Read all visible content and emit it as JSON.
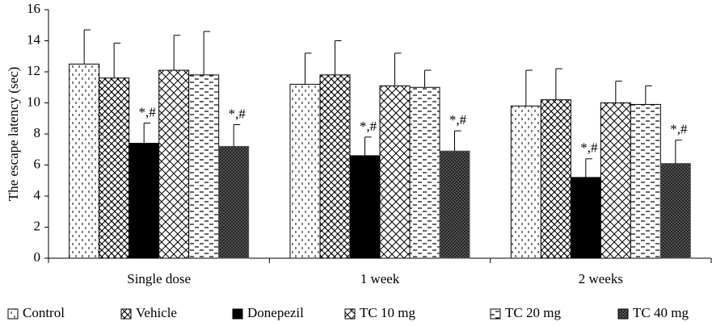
{
  "chart_data": {
    "type": "bar",
    "y_label": "The escape latency (sec)",
    "categories": [
      "Single dose",
      "1 week",
      "2 weeks"
    ],
    "ylim": [
      0,
      16
    ],
    "yticks": [
      0,
      2,
      4,
      6,
      8,
      10,
      12,
      14,
      16
    ],
    "legend": "bottom",
    "series": [
      {
        "name": "Control",
        "color": "#000000",
        "pattern": "vdash",
        "values": [
          12.5,
          11.2,
          9.8
        ],
        "errors": [
          2.2,
          2.0,
          2.3
        ]
      },
      {
        "name": "Vehicle",
        "color": "#000000",
        "pattern": "weave",
        "values": [
          11.6,
          11.8,
          10.2
        ],
        "errors": [
          2.25,
          2.2,
          2.0
        ]
      },
      {
        "name": "Donepezil",
        "color": "#000000",
        "pattern": "solid",
        "values": [
          7.4,
          6.6,
          5.2
        ],
        "errors": [
          1.3,
          1.2,
          1.2
        ],
        "labels": [
          "*,#",
          "*,#",
          "*,#"
        ]
      },
      {
        "name": "TC 10 mg",
        "color": "#000000",
        "pattern": "cross",
        "values": [
          12.1,
          11.1,
          10.0
        ],
        "errors": [
          2.25,
          2.1,
          1.4
        ]
      },
      {
        "name": "TC 20 mg",
        "color": "#000000",
        "pattern": "hdash",
        "values": [
          11.8,
          11.0,
          9.9
        ],
        "errors": [
          2.8,
          1.1,
          1.2
        ]
      },
      {
        "name": "TC 40 mg",
        "color": "#555555",
        "pattern": "checker",
        "values": [
          7.2,
          6.9,
          6.1
        ],
        "errors": [
          1.4,
          1.3,
          1.5
        ],
        "labels": [
          "*,#",
          "*,#",
          "*,#"
        ]
      }
    ]
  }
}
